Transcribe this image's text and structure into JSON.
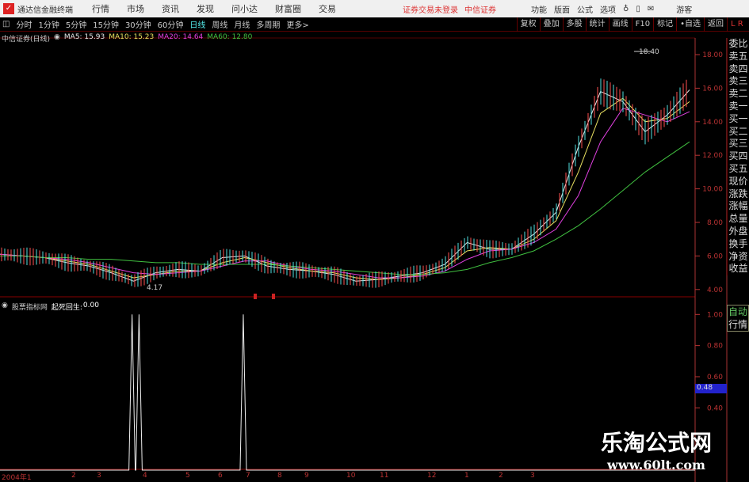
{
  "menubar": {
    "app_title": "通达信金融终端",
    "items": [
      "行情",
      "市场",
      "资讯",
      "发现",
      "问小达",
      "财富圈",
      "交易"
    ],
    "warning": "证券交易未登录",
    "broker": "中信证券",
    "right_items": [
      "功能",
      "版面",
      "公式",
      "选项"
    ],
    "user": "游客"
  },
  "toolbar": {
    "periods": [
      "分时",
      "1分钟",
      "5分钟",
      "15分钟",
      "30分钟",
      "60分钟",
      "日线",
      "周线",
      "月线",
      "多周期",
      "更多>"
    ],
    "active": "日线",
    "right_buttons": [
      "复权",
      "叠加",
      "多股",
      "统计",
      "画线",
      "F10",
      "标记",
      "•自选",
      "返回"
    ]
  },
  "main_chart": {
    "title": "中信证券(日线)",
    "ma": [
      {
        "label": "MA5: 15.93",
        "color": "#e8e8e8"
      },
      {
        "label": "MA10: 15.23",
        "color": "#e8e060"
      },
      {
        "label": "MA20: 14.64",
        "color": "#e040e0"
      },
      {
        "label": "MA60: 12.80",
        "color": "#40c040"
      }
    ],
    "high_label": "18.40",
    "low_label": "4.17",
    "y_ticks": [
      "18.00",
      "16.00",
      "14.00",
      "12.00",
      "10.00",
      "8.00",
      "6.00",
      "4.00"
    ]
  },
  "chart_data": [
    {
      "type": "line",
      "title": "中信证券(日线)",
      "ylim": [
        4,
        18.5
      ],
      "series": [
        {
          "name": "MA5",
          "values": [
            6.1,
            6.0,
            5.9,
            5.6,
            5.4,
            5.0,
            4.5,
            5.0,
            5.2,
            5.1,
            5.9,
            6.0,
            5.4,
            5.2,
            5.1,
            4.9,
            4.5,
            4.6,
            4.8,
            5.0,
            5.5,
            6.8,
            6.4,
            6.4,
            7.3,
            8.6,
            12.5,
            15.8,
            15.2,
            13.4,
            14.4,
            15.9
          ]
        },
        {
          "name": "MA10",
          "values": [
            6.1,
            6.0,
            5.9,
            5.7,
            5.5,
            5.1,
            4.7,
            4.9,
            5.1,
            5.1,
            5.6,
            5.9,
            5.6,
            5.3,
            5.1,
            5.0,
            4.7,
            4.6,
            4.7,
            4.9,
            5.3,
            6.3,
            6.5,
            6.4,
            7.0,
            8.1,
            11.0,
            14.5,
            15.4,
            14.0,
            14.2,
            15.2
          ]
        },
        {
          "name": "MA20",
          "values": [
            6.1,
            6.0,
            5.9,
            5.8,
            5.6,
            5.3,
            5.0,
            4.9,
            5.0,
            5.1,
            5.4,
            5.7,
            5.7,
            5.4,
            5.2,
            5.1,
            4.9,
            4.7,
            4.7,
            4.8,
            5.1,
            5.8,
            6.3,
            6.4,
            6.8,
            7.6,
            9.6,
            12.8,
            14.8,
            14.4,
            14.0,
            14.6
          ]
        },
        {
          "name": "MA60",
          "values": [
            6.0,
            6.0,
            5.9,
            5.9,
            5.8,
            5.8,
            5.7,
            5.6,
            5.6,
            5.5,
            5.5,
            5.5,
            5.5,
            5.4,
            5.3,
            5.2,
            5.1,
            5.0,
            4.9,
            4.9,
            5.0,
            5.2,
            5.6,
            5.9,
            6.3,
            7.0,
            7.8,
            8.8,
            9.9,
            11.0,
            11.9,
            12.8
          ]
        }
      ]
    },
    {
      "type": "line",
      "title": "起死回生",
      "ylim": [
        0,
        1.05
      ],
      "spikes": [
        0.19,
        0.2,
        0.35
      ],
      "y_ticks": [
        "1.00",
        "0.80",
        "0.60",
        "0.40"
      ]
    }
  ],
  "indicator": {
    "source": "股票指标网",
    "name": "起死回生:",
    "value": "0.00",
    "cursor_value": "0.48"
  },
  "x_labels": [
    "2004年1",
    "2",
    "3",
    "4",
    "5",
    "6",
    "7",
    "8",
    "9",
    "10",
    "11",
    "12",
    "1",
    "2",
    "3"
  ],
  "side_panel": [
    "委比",
    "卖五",
    "卖四",
    "卖三",
    "卖二",
    "卖一",
    "买一",
    "买二",
    "买三",
    "买四",
    "买五",
    "现价",
    "涨跌",
    "涨幅",
    "总量",
    "外盘",
    "换手",
    "净资",
    "收益"
  ],
  "side_panel2": [
    "自动",
    "行情"
  ],
  "watermark": {
    "title": "乐淘公式网",
    "url": "www.60lt.com"
  },
  "colors": {
    "axis": "#b33",
    "grid": "#600",
    "up": "#ff4444"
  }
}
